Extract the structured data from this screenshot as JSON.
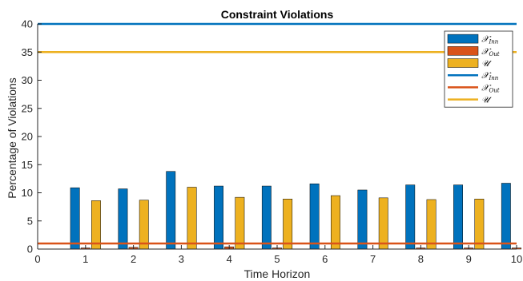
{
  "chart_data": {
    "type": "bar",
    "title": "Constraint Violations",
    "xlabel": "Time Horizon",
    "ylabel": "Percentage of Violations",
    "xlim": [
      0,
      10
    ],
    "ylim": [
      0,
      40
    ],
    "x_ticks": [
      0,
      1,
      2,
      3,
      4,
      5,
      6,
      7,
      8,
      9,
      10
    ],
    "y_ticks": [
      0,
      5,
      10,
      15,
      20,
      25,
      30,
      35,
      40
    ],
    "categories": [
      1,
      2,
      3,
      4,
      5,
      6,
      7,
      8,
      9,
      10
    ],
    "series": [
      {
        "name": "X_Inn",
        "legend_main": "𝒳",
        "legend_sub": "Inn",
        "color": "#0072BD",
        "values": [
          10.9,
          10.7,
          13.8,
          11.2,
          11.2,
          11.6,
          10.5,
          11.4,
          11.4,
          11.7
        ]
      },
      {
        "name": "X_Out",
        "legend_main": "𝒳",
        "legend_sub": "Out",
        "color": "#D95319",
        "values": [
          0.2,
          0.3,
          0.0,
          0.4,
          0.2,
          0.0,
          0.0,
          0.2,
          0.2,
          0.2
        ]
      },
      {
        "name": "U",
        "legend_main": "𝒰",
        "legend_sub": "",
        "color": "#EDB120",
        "values": [
          8.6,
          8.7,
          11.0,
          9.2,
          8.9,
          9.5,
          9.1,
          8.8,
          8.9,
          0.0
        ]
      }
    ],
    "reference_lines": [
      {
        "name": "X_Inn",
        "legend_main": "𝒳",
        "legend_sub": "Inn",
        "color": "#0072BD",
        "value": 40
      },
      {
        "name": "X_Out",
        "legend_main": "𝒳",
        "legend_sub": "Out",
        "color": "#D95319",
        "value": 1
      },
      {
        "name": "U",
        "legend_main": "𝒰",
        "legend_sub": "",
        "color": "#EDB120",
        "value": 35
      }
    ],
    "legend_position": "top-right",
    "grid": false
  }
}
